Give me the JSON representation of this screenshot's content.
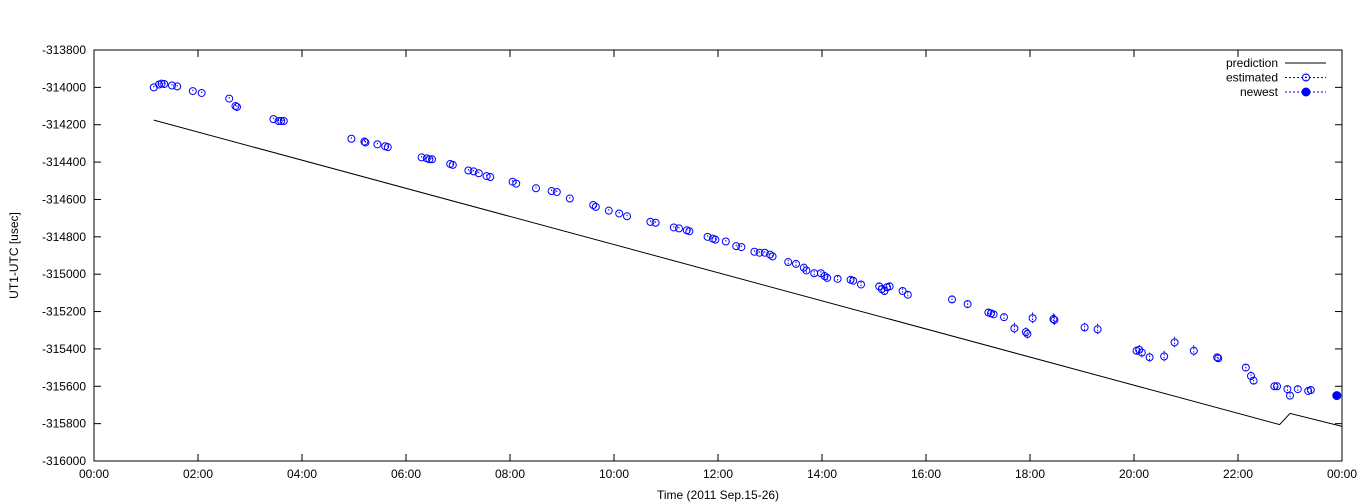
{
  "chart_data": {
    "type": "scatter",
    "xlabel": "Time (2011 Sep.15-26)",
    "ylabel": "UT1-UTC [usec]",
    "xlim": [
      0,
      24
    ],
    "ylim": [
      -316000,
      -313800
    ],
    "x_tick_labels": [
      "00:00",
      "02:00",
      "04:00",
      "06:00",
      "08:00",
      "10:00",
      "12:00",
      "14:00",
      "16:00",
      "18:00",
      "20:00",
      "22:00",
      "00:00"
    ],
    "y_ticks": [
      -313800,
      -314000,
      -314200,
      -314400,
      -314600,
      -314800,
      -315000,
      -315200,
      -315400,
      -315600,
      -315800,
      -316000
    ],
    "legend_position": "top-right",
    "colors": {
      "prediction": "#000000",
      "estimated": "#0000ff",
      "newest": "#0000ff"
    },
    "series": [
      {
        "name": "prediction",
        "style": "line",
        "points": [
          [
            1.15,
            -314175
          ],
          [
            22.8,
            -315805
          ],
          [
            23.0,
            -315745
          ],
          [
            24.0,
            -315815
          ]
        ]
      },
      {
        "name": "estimated",
        "style": "open-circle-errorbar",
        "points": [
          [
            1.15,
            -314000,
            8
          ],
          [
            1.25,
            -313985,
            8
          ],
          [
            1.3,
            -313980,
            8
          ],
          [
            1.35,
            -313982,
            8
          ],
          [
            1.5,
            -313990,
            8
          ],
          [
            1.6,
            -313995,
            8
          ],
          [
            1.9,
            -314020,
            8
          ],
          [
            2.07,
            -314030,
            8
          ],
          [
            2.6,
            -314060,
            8
          ],
          [
            2.72,
            -314100,
            8
          ],
          [
            2.75,
            -314105,
            8
          ],
          [
            3.45,
            -314170,
            8
          ],
          [
            3.55,
            -314180,
            8
          ],
          [
            3.6,
            -314180,
            8
          ],
          [
            3.65,
            -314180,
            8
          ],
          [
            4.95,
            -314275,
            8
          ],
          [
            5.2,
            -314290,
            8
          ],
          [
            5.22,
            -314295,
            8
          ],
          [
            5.45,
            -314305,
            8
          ],
          [
            5.6,
            -314315,
            8
          ],
          [
            5.65,
            -314320,
            8
          ],
          [
            6.3,
            -314375,
            8
          ],
          [
            6.4,
            -314380,
            8
          ],
          [
            6.45,
            -314385,
            8
          ],
          [
            6.5,
            -314385,
            8
          ],
          [
            6.85,
            -314410,
            8
          ],
          [
            6.9,
            -314415,
            8
          ],
          [
            7.2,
            -314445,
            8
          ],
          [
            7.3,
            -314450,
            8
          ],
          [
            7.4,
            -314460,
            8
          ],
          [
            7.55,
            -314475,
            8
          ],
          [
            7.62,
            -314480,
            8
          ],
          [
            8.05,
            -314505,
            8
          ],
          [
            8.12,
            -314515,
            8
          ],
          [
            8.5,
            -314540,
            8
          ],
          [
            8.8,
            -314555,
            8
          ],
          [
            8.9,
            -314560,
            8
          ],
          [
            9.15,
            -314595,
            8
          ],
          [
            9.6,
            -314630,
            8
          ],
          [
            9.65,
            -314640,
            8
          ],
          [
            9.9,
            -314660,
            8
          ],
          [
            10.1,
            -314675,
            8
          ],
          [
            10.25,
            -314690,
            8
          ],
          [
            10.7,
            -314720,
            8
          ],
          [
            10.8,
            -314725,
            8
          ],
          [
            11.15,
            -314750,
            8
          ],
          [
            11.25,
            -314755,
            8
          ],
          [
            11.4,
            -314765,
            8
          ],
          [
            11.45,
            -314770,
            8
          ],
          [
            11.8,
            -314800,
            8
          ],
          [
            11.9,
            -314810,
            8
          ],
          [
            11.95,
            -314815,
            8
          ],
          [
            12.15,
            -314825,
            8
          ],
          [
            12.35,
            -314850,
            8
          ],
          [
            12.45,
            -314855,
            8
          ],
          [
            12.7,
            -314880,
            8
          ],
          [
            12.8,
            -314885,
            8
          ],
          [
            12.9,
            -314885,
            8
          ],
          [
            13.0,
            -314895,
            8
          ],
          [
            13.05,
            -314905,
            8
          ],
          [
            13.35,
            -314935,
            12
          ],
          [
            13.5,
            -314945,
            12
          ],
          [
            13.65,
            -314965,
            12
          ],
          [
            13.7,
            -314980,
            12
          ],
          [
            13.85,
            -314995,
            12
          ],
          [
            13.98,
            -314995,
            12
          ],
          [
            14.05,
            -315010,
            12
          ],
          [
            14.1,
            -315020,
            12
          ],
          [
            14.3,
            -315025,
            15
          ],
          [
            14.55,
            -315030,
            15
          ],
          [
            14.6,
            -315035,
            15
          ],
          [
            14.75,
            -315055,
            15
          ],
          [
            15.1,
            -315065,
            20
          ],
          [
            15.15,
            -315080,
            20
          ],
          [
            15.2,
            -315090,
            20
          ],
          [
            15.25,
            -315070,
            20
          ],
          [
            15.3,
            -315065,
            20
          ],
          [
            15.55,
            -315090,
            15
          ],
          [
            15.65,
            -315110,
            15
          ],
          [
            16.5,
            -315135,
            20
          ],
          [
            16.8,
            -315160,
            20
          ],
          [
            17.2,
            -315205,
            15
          ],
          [
            17.25,
            -315210,
            15
          ],
          [
            17.3,
            -315215,
            15
          ],
          [
            17.5,
            -315230,
            15
          ],
          [
            17.7,
            -315290,
            30
          ],
          [
            17.92,
            -315310,
            25
          ],
          [
            17.95,
            -315320,
            25
          ],
          [
            18.05,
            -315235,
            30
          ],
          [
            18.45,
            -315240,
            30
          ],
          [
            18.47,
            -315245,
            30
          ],
          [
            19.05,
            -315285,
            25
          ],
          [
            19.3,
            -315295,
            30
          ],
          [
            20.05,
            -315410,
            20
          ],
          [
            20.1,
            -315405,
            25
          ],
          [
            20.15,
            -315420,
            25
          ],
          [
            20.3,
            -315445,
            25
          ],
          [
            20.58,
            -315440,
            30
          ],
          [
            20.78,
            -315365,
            30
          ],
          [
            21.15,
            -315410,
            30
          ],
          [
            21.6,
            -315445,
            20
          ],
          [
            21.62,
            -315450,
            20
          ],
          [
            22.15,
            -315500,
            20
          ],
          [
            22.25,
            -315545,
            25
          ],
          [
            22.3,
            -315570,
            20
          ],
          [
            22.7,
            -315600,
            15
          ],
          [
            22.75,
            -315600,
            15
          ],
          [
            22.95,
            -315615,
            15
          ],
          [
            23.0,
            -315650,
            15
          ],
          [
            23.15,
            -315615,
            15
          ],
          [
            23.35,
            -315625,
            15
          ],
          [
            23.4,
            -315620,
            15
          ]
        ]
      },
      {
        "name": "newest",
        "style": "filled-circle-errorbar",
        "points": [
          [
            23.9,
            -315650,
            20
          ]
        ]
      }
    ]
  }
}
